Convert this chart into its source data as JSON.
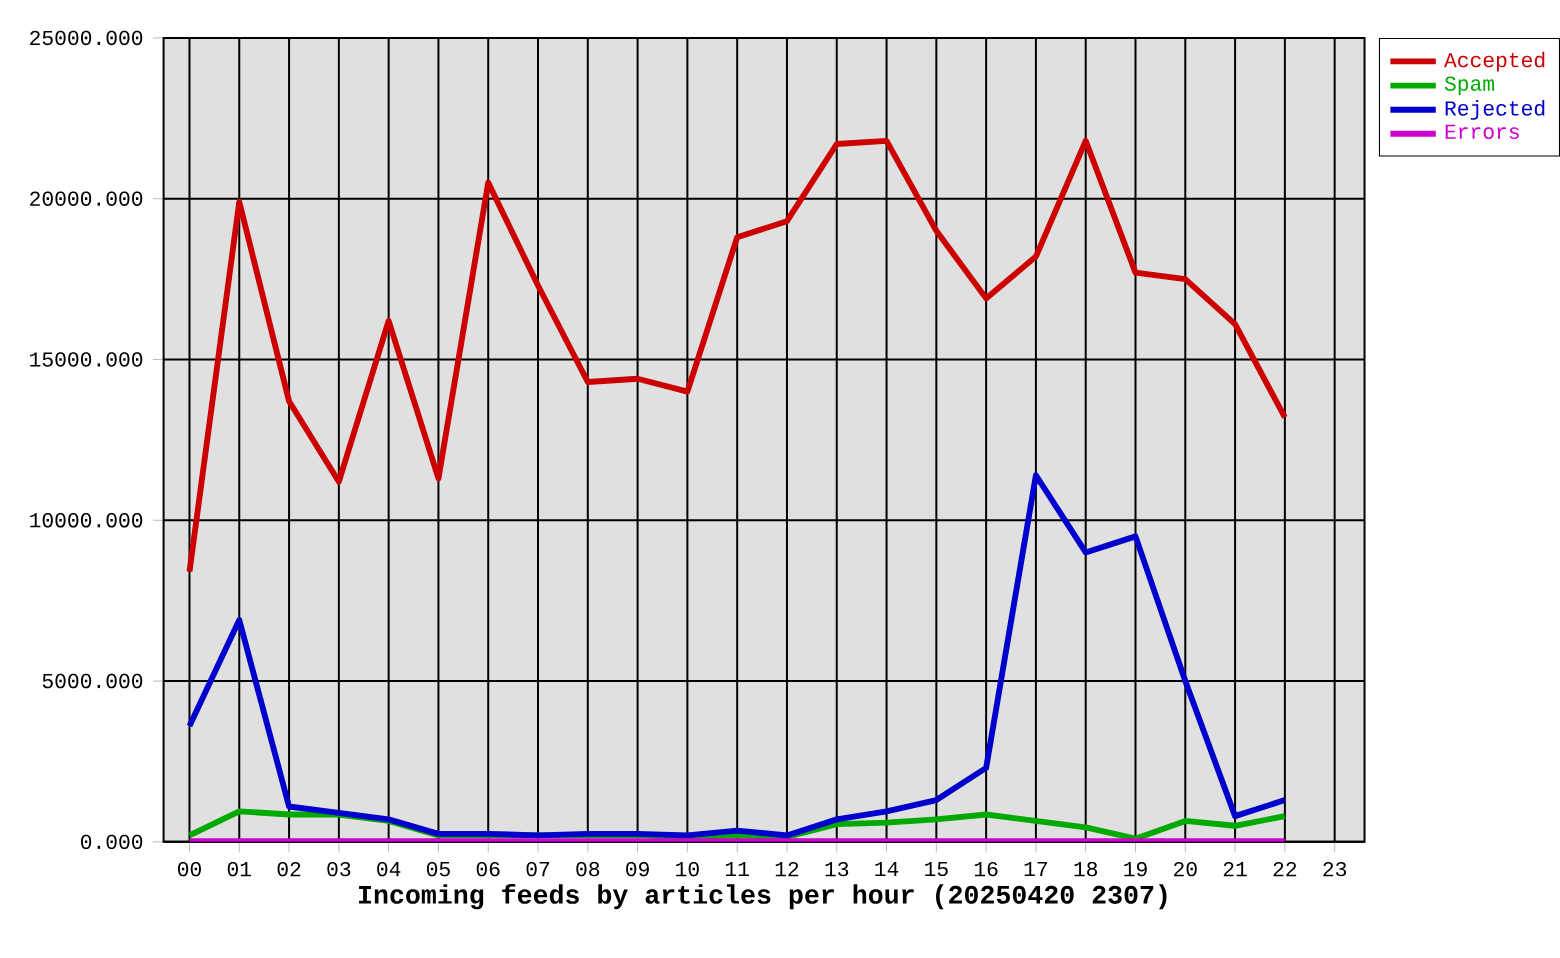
{
  "chart_data": {
    "type": "line",
    "xlabel": "Incoming feeds by articles per hour (20250420 2307)",
    "categories": [
      "00",
      "01",
      "02",
      "03",
      "04",
      "05",
      "06",
      "07",
      "08",
      "09",
      "10",
      "11",
      "12",
      "13",
      "14",
      "15",
      "16",
      "17",
      "18",
      "19",
      "20",
      "21",
      "22",
      "23"
    ],
    "series": [
      {
        "name": "Accepted",
        "color": "#cc0000",
        "values": [
          8400,
          19900,
          13700,
          11200,
          16200,
          11300,
          20500,
          17300,
          14300,
          14400,
          14000,
          18800,
          19300,
          21700,
          21800,
          19000,
          16900,
          18200,
          21800,
          17700,
          17500,
          16100,
          13200,
          null
        ]
      },
      {
        "name": "Spam",
        "color": "#00aa00",
        "values": [
          200,
          950,
          850,
          850,
          650,
          200,
          200,
          null,
          200,
          200,
          150,
          200,
          150,
          550,
          600,
          700,
          850,
          650,
          450,
          100,
          650,
          500,
          800,
          null
        ]
      },
      {
        "name": "Rejected",
        "color": "#0000cc",
        "values": [
          3600,
          6900,
          1100,
          900,
          700,
          250,
          250,
          200,
          250,
          250,
          200,
          350,
          200,
          700,
          950,
          1300,
          2300,
          11400,
          9000,
          9500,
          5000,
          800,
          1300,
          null
        ]
      },
      {
        "name": "Errors",
        "color": "#cc00cc",
        "values": [
          20,
          20,
          20,
          20,
          20,
          20,
          20,
          20,
          20,
          20,
          20,
          20,
          20,
          20,
          20,
          20,
          20,
          20,
          20,
          20,
          20,
          20,
          20,
          null
        ]
      }
    ],
    "ylim": [
      0,
      25000
    ],
    "yticks": [
      {
        "value": 0,
        "label": "0.000"
      },
      {
        "value": 5000,
        "label": "5000.000"
      },
      {
        "value": 10000,
        "label": "10000.000"
      },
      {
        "value": 15000,
        "label": "15000.000"
      },
      {
        "value": 20000,
        "label": "20000.000"
      },
      {
        "value": 25000,
        "label": "25000.000"
      }
    ],
    "grid": true,
    "legend": "top right",
    "marker": "none",
    "line_style": "solid"
  }
}
